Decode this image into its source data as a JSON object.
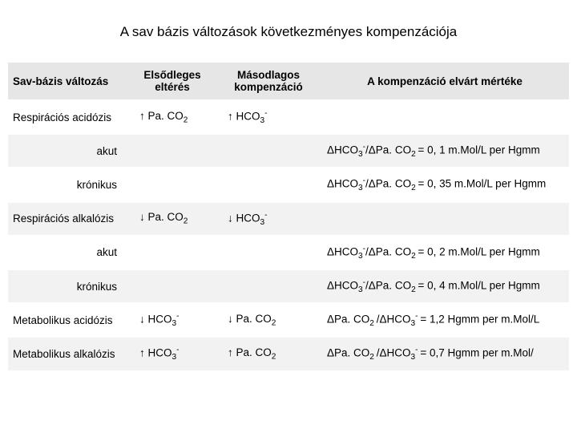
{
  "title": "A sav bázis változások  következményes kompenzációja",
  "headers": {
    "col1": "Sav-bázis változás",
    "col2_l1": "Elsődleges",
    "col2_l2": "eltérés",
    "col3_l1": "Másodlagos",
    "col3_l2": "kompenzáció",
    "col4": "A kompenzáció elvárt mértéke"
  },
  "rows": {
    "resp_acid_name": "Respirációs acidózis",
    "resp_acid_primary_arrow": "↑ Pa. CO",
    "resp_acid_primary_sub": "2",
    "resp_acid_secondary_arrow": "↑ HCO",
    "resp_acid_secondary_sub": "3",
    "resp_acid_secondary_sup": "-",
    "akut_label": "akut",
    "kronikus_label": "krónikus",
    "resp_acid_akut_text": "ΔHCO3-/ΔPa. CO2 = 0, 1 m.Mol/L per Hgmm",
    "resp_acid_kron_text": "ΔHCO3-/ΔPa. CO2 = 0, 35 m.Mol/L per Hgmm",
    "resp_alk_name": "Respirációs alkalózis",
    "resp_alk_primary_arrow": "↓ Pa. CO",
    "resp_alk_primary_sub": "2",
    "resp_alk_secondary_arrow": "↓ HCO",
    "resp_alk_secondary_sub": "3",
    "resp_alk_secondary_sup": "-",
    "resp_alk_akut_text": "ΔHCO3-/ΔPa. CO2 = 0, 2 m.Mol/L per Hgmm",
    "resp_alk_kron_text": "ΔHCO3-/ΔPa. CO2 = 0, 4 m.Mol/L per Hgmm",
    "met_acid_name": "Metabolikus acidózis",
    "met_acid_primary_arrow": "↓ HCO",
    "met_acid_primary_sub": "3",
    "met_acid_primary_sup": "-",
    "met_acid_secondary_arrow": "↓ Pa. CO",
    "met_acid_secondary_sub": "2",
    "met_acid_text": "ΔPa. CO2 /ΔHCO3- = 1,2 Hgmm per m.Mol/L",
    "met_alk_name": "Metabolikus alkalózis",
    "met_alk_primary_arrow": "↑ HCO",
    "met_alk_primary_sub": "3",
    "met_alk_primary_sup": "-",
    "met_alk_secondary_arrow": "↑ Pa. CO",
    "met_alk_secondary_sub": "2",
    "met_alk_text": "ΔPa. CO2 /ΔHCO3- = 0,7 Hgmm per m.Mol/"
  },
  "style": {
    "header_bg": "#e6e6e6",
    "row_grey": "#f2f2f2",
    "row_white": "#ffffff",
    "text_color": "#000000",
    "title_fontsize": 17,
    "cell_fontsize": 13.5
  }
}
